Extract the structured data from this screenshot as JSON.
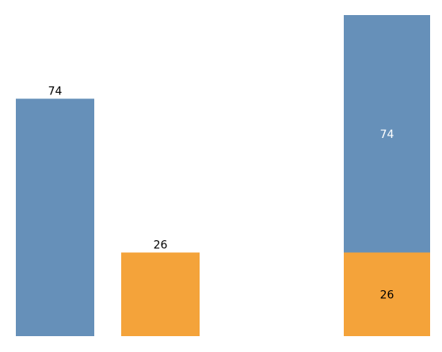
{
  "chart_data": [
    {
      "type": "bar",
      "categories": [
        "",
        ""
      ],
      "values": [
        74,
        26
      ],
      "colors": [
        "#6690b9",
        "#f4a33a"
      ],
      "data_labels": [
        "74",
        "26"
      ],
      "label_color": "#000000",
      "ylim": [
        0,
        100
      ],
      "grid": false,
      "title": "",
      "xlabel": "",
      "ylabel": ""
    },
    {
      "type": "bar",
      "stacked": true,
      "categories": [
        ""
      ],
      "series": [
        {
          "values": [
            26
          ],
          "color": "#f4a33a",
          "label": "26",
          "label_color": "#000000"
        },
        {
          "values": [
            74
          ],
          "color": "#6690b9",
          "label": "74",
          "label_color": "#ffffff"
        }
      ],
      "ylim": [
        0,
        100
      ],
      "grid": false,
      "title": "",
      "xlabel": "",
      "ylabel": ""
    }
  ]
}
